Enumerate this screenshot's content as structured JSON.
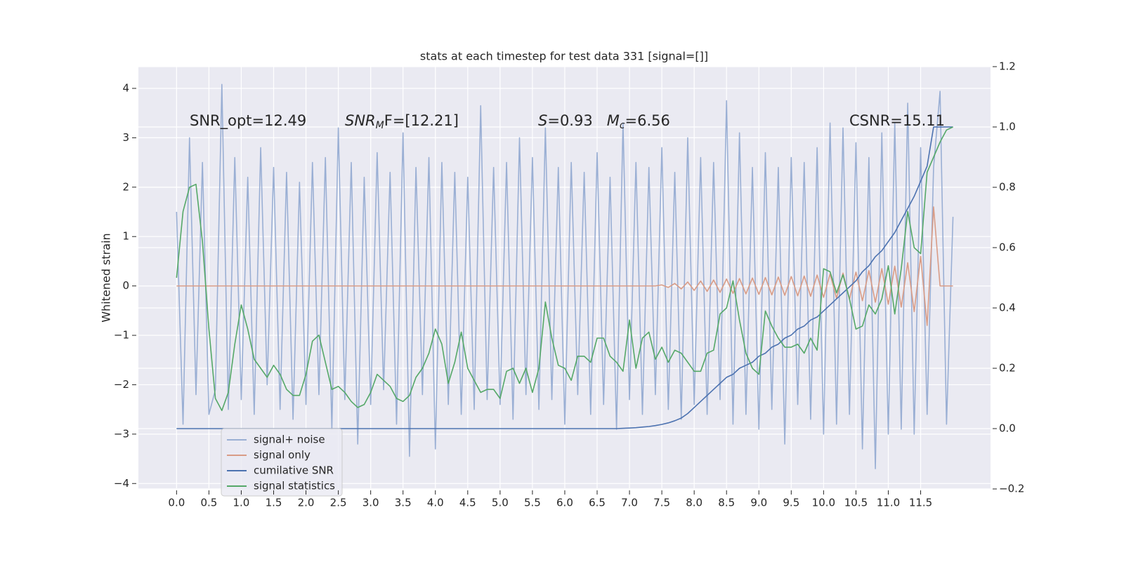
{
  "chart_data": {
    "type": "line",
    "title": "stats at each timestep for test data 331 [signal=[]]",
    "ylabel": "Whitened strain",
    "annotations": [
      [
        "SNR_opt=12.49"
      ],
      [
        "SNR",
        "M",
        "F=[12.21]"
      ],
      [
        "S",
        "=0.93",
        "M",
        "c",
        "=6.56"
      ],
      [
        "CSNR=15.11"
      ]
    ],
    "x": [
      0,
      0.1,
      0.2,
      0.3,
      0.4,
      0.5,
      0.6,
      0.7,
      0.8,
      0.9,
      1,
      1.1,
      1.2,
      1.3,
      1.4,
      1.5,
      1.6,
      1.7,
      1.8,
      1.9,
      2,
      2.1,
      2.2,
      2.3,
      2.4,
      2.5,
      2.6,
      2.7,
      2.8,
      2.9,
      3,
      3.1,
      3.2,
      3.3,
      3.4,
      3.5,
      3.6,
      3.7,
      3.8,
      3.9,
      4,
      4.1,
      4.2,
      4.3,
      4.4,
      4.5,
      4.6,
      4.7,
      4.8,
      4.9,
      5,
      5.1,
      5.2,
      5.3,
      5.4,
      5.5,
      5.6,
      5.7,
      5.8,
      5.9,
      6,
      6.1,
      6.2,
      6.3,
      6.4,
      6.5,
      6.6,
      6.7,
      6.8,
      6.9,
      7,
      7.1,
      7.2,
      7.3,
      7.4,
      7.5,
      7.6,
      7.7,
      7.8,
      7.9,
      8,
      8.1,
      8.2,
      8.3,
      8.4,
      8.5,
      8.6,
      8.7,
      8.8,
      8.9,
      9,
      9.1,
      9.2,
      9.3,
      9.4,
      9.5,
      9.6,
      9.7,
      9.8,
      9.9,
      10,
      10.1,
      10.2,
      10.3,
      10.4,
      10.5,
      10.6,
      10.7,
      10.8,
      10.9,
      11,
      11.1,
      11.2,
      11.3,
      11.4,
      11.5,
      11.6,
      11.7,
      11.8,
      11.9,
      12
    ],
    "series": [
      {
        "name": "signal+ noise",
        "color": "#9aafd4",
        "values": [
          1.5,
          -2.8,
          3.0,
          -2.2,
          2.5,
          -2.6,
          -2.1,
          4.08,
          -2.5,
          2.6,
          -2.3,
          2.2,
          -2.6,
          2.8,
          -2.0,
          2.4,
          -2.5,
          2.3,
          -2.7,
          2.1,
          -2.4,
          2.5,
          -2.2,
          2.6,
          -2.9,
          3.2,
          -2.3,
          2.5,
          -3.2,
          2.2,
          -2.4,
          2.7,
          -2.1,
          2.3,
          -2.8,
          3.1,
          -3.45,
          2.4,
          -2.2,
          2.6,
          -3.3,
          2.5,
          -2.4,
          2.3,
          -2.6,
          2.2,
          -2.5,
          3.65,
          -2.3,
          2.4,
          -2.4,
          2.5,
          -2.7,
          3.0,
          -2.2,
          2.6,
          -2.5,
          3.2,
          -2.3,
          2.4,
          -2.8,
          2.5,
          -2.2,
          2.3,
          -2.6,
          2.7,
          -2.4,
          2.2,
          -2.9,
          3.3,
          -2.3,
          2.5,
          -2.6,
          2.4,
          -2.2,
          2.8,
          -2.5,
          2.3,
          -2.7,
          3.0,
          -2.4,
          2.6,
          -2.6,
          2.5,
          -2.3,
          3.75,
          -2.8,
          3.1,
          -2.6,
          2.4,
          -2.9,
          2.7,
          -2.5,
          2.4,
          -3.2,
          2.6,
          -2.4,
          2.5,
          -2.7,
          2.8,
          -3.0,
          3.3,
          -2.8,
          3.2,
          -2.6,
          2.9,
          -3.3,
          2.6,
          -3.7,
          3.1,
          -3.0,
          3.3,
          -2.9,
          3.7,
          -3.0,
          2.8,
          -2.6,
          2.4,
          3.94,
          -2.8,
          1.4
        ]
      },
      {
        "name": "signal only",
        "color": "#d99c86",
        "values": [
          0,
          0,
          0,
          0,
          0,
          0,
          0,
          0,
          0,
          0,
          0,
          0,
          0,
          0,
          0,
          0,
          0,
          0,
          0,
          0,
          0,
          0,
          0,
          0,
          0,
          0,
          0,
          0,
          0,
          0,
          0,
          0,
          0,
          0,
          0,
          0,
          0,
          0,
          0,
          0,
          0,
          0,
          0,
          0,
          0,
          0,
          0,
          0,
          0,
          0,
          0,
          0,
          0,
          0,
          0,
          0,
          0,
          0,
          0,
          0,
          0,
          0,
          0,
          0,
          0,
          0,
          0,
          0,
          0,
          0,
          0,
          0,
          0,
          0,
          0,
          0.02,
          -0.03,
          0.05,
          -0.06,
          0.08,
          -0.09,
          0.1,
          -0.11,
          0.12,
          -0.13,
          0.14,
          -0.15,
          0.15,
          -0.16,
          0.16,
          -0.17,
          0.17,
          -0.18,
          0.18,
          -0.19,
          0.19,
          -0.2,
          0.2,
          -0.21,
          0.22,
          -0.23,
          0.24,
          -0.25,
          0.26,
          -0.27,
          0.28,
          -0.3,
          0.31,
          -0.33,
          0.35,
          -0.37,
          0.4,
          -0.43,
          0.47,
          -0.52,
          0.6,
          -0.8,
          1.6,
          0,
          0,
          0
        ]
      },
      {
        "name": "cumilative SNR",
        "color": "#4c72b0",
        "axis": "y2",
        "values": [
          0,
          0,
          0,
          0,
          0,
          0,
          0,
          0,
          0,
          0,
          0,
          0,
          0,
          0,
          0,
          0,
          0,
          0,
          0,
          0,
          0,
          0,
          0,
          0,
          0,
          0,
          0,
          0,
          0,
          0,
          0,
          0,
          0,
          0,
          0,
          0,
          0,
          0,
          0,
          0,
          0,
          0,
          0,
          0,
          0,
          0,
          0,
          0,
          0,
          0,
          0,
          0,
          0,
          0,
          0,
          0,
          0,
          0,
          0,
          0,
          0,
          0,
          0,
          0,
          0,
          0,
          0,
          0,
          0,
          0.001,
          0.002,
          0.003,
          0.005,
          0.007,
          0.01,
          0.014,
          0.019,
          0.026,
          0.035,
          0.05,
          0.07,
          0.09,
          0.11,
          0.13,
          0.15,
          0.17,
          0.18,
          0.2,
          0.21,
          0.22,
          0.24,
          0.25,
          0.27,
          0.28,
          0.3,
          0.31,
          0.33,
          0.34,
          0.36,
          0.37,
          0.39,
          0.41,
          0.43,
          0.45,
          0.47,
          0.49,
          0.52,
          0.54,
          0.57,
          0.59,
          0.62,
          0.65,
          0.69,
          0.73,
          0.77,
          0.82,
          0.87,
          1.0,
          1.0,
          1.0,
          1.0
        ]
      },
      {
        "name": "signal statistics",
        "color": "#55a868",
        "axis": "y2",
        "values": [
          0.5,
          0.72,
          0.8,
          0.81,
          0.62,
          0.33,
          0.1,
          0.06,
          0.12,
          0.28,
          0.41,
          0.33,
          0.23,
          0.2,
          0.17,
          0.21,
          0.18,
          0.13,
          0.11,
          0.11,
          0.18,
          0.29,
          0.31,
          0.22,
          0.13,
          0.14,
          0.12,
          0.09,
          0.07,
          0.08,
          0.12,
          0.18,
          0.16,
          0.14,
          0.1,
          0.09,
          0.11,
          0.17,
          0.2,
          0.25,
          0.33,
          0.28,
          0.15,
          0.22,
          0.32,
          0.2,
          0.16,
          0.12,
          0.13,
          0.13,
          0.1,
          0.19,
          0.2,
          0.15,
          0.2,
          0.12,
          0.2,
          0.42,
          0.3,
          0.21,
          0.2,
          0.16,
          0.24,
          0.24,
          0.22,
          0.3,
          0.3,
          0.24,
          0.22,
          0.19,
          0.36,
          0.2,
          0.3,
          0.32,
          0.23,
          0.27,
          0.22,
          0.26,
          0.25,
          0.22,
          0.19,
          0.19,
          0.25,
          0.26,
          0.38,
          0.4,
          0.49,
          0.36,
          0.25,
          0.2,
          0.18,
          0.39,
          0.34,
          0.3,
          0.27,
          0.27,
          0.28,
          0.25,
          0.3,
          0.26,
          0.53,
          0.52,
          0.45,
          0.51,
          0.43,
          0.33,
          0.34,
          0.41,
          0.38,
          0.43,
          0.54,
          0.38,
          0.53,
          0.72,
          0.6,
          0.58,
          0.85,
          0.9,
          0.95,
          0.99,
          1.0
        ]
      }
    ],
    "xlim": [
      -0.59,
      12.58
    ],
    "xticks": [
      {
        "value": 0,
        "label": "0.0"
      },
      0.5,
      {
        "value": 1,
        "label": "1.0"
      },
      1.5,
      {
        "value": 2,
        "label": "2.0"
      },
      2.5,
      {
        "value": 3,
        "label": "3.0"
      },
      3.5,
      {
        "value": 4,
        "label": "4.0"
      },
      4.5,
      {
        "value": 5,
        "label": "5.0"
      },
      5.5,
      {
        "value": 6,
        "label": "6.0"
      },
      6.5,
      {
        "value": 7,
        "label": "7.0"
      },
      7.5,
      {
        "value": 8,
        "label": "8.0"
      },
      8.5,
      {
        "value": 9,
        "label": "9.0"
      },
      9.5,
      {
        "value": 10,
        "label": "10.0"
      },
      10.5,
      {
        "value": 11,
        "label": "11.0"
      },
      11.5
    ],
    "ylim": [
      -4.11,
      4.44
    ],
    "yticks": [
      {
        "value": -4,
        "label": "−4"
      },
      {
        "value": -3,
        "label": "−3"
      },
      {
        "value": -2,
        "label": "−2"
      },
      {
        "value": -1,
        "label": "−1"
      },
      0,
      1,
      2,
      3,
      4
    ],
    "y2lim": [
      -0.2,
      1.2
    ],
    "y2ticks": [
      {
        "value": -0.2,
        "label": "−0.2"
      },
      {
        "value": 0,
        "label": "0.0"
      },
      0.2,
      0.4,
      0.6,
      0.8,
      {
        "value": 1,
        "label": "1.0"
      },
      1.2
    ],
    "grid": true,
    "legend": "lower left"
  }
}
